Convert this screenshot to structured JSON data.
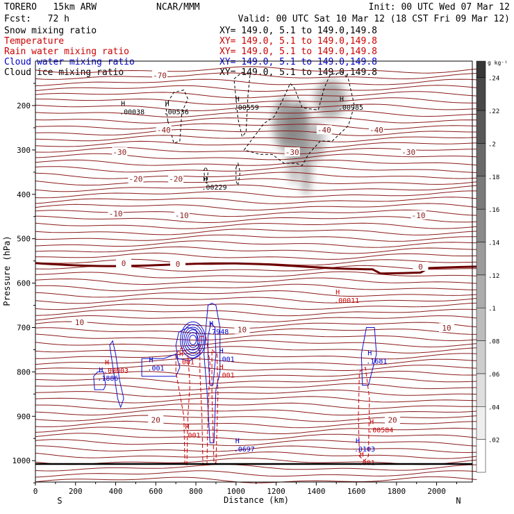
{
  "chart_data": {
    "type": "contour",
    "header": {
      "model": "TORERO   15km ARW",
      "center": "NCAR/MMM",
      "init": "Init: 00 UTC Wed 07 Mar 12",
      "fcst": "Fcst:   72 h",
      "valid": "Valid: 00 UTC Sat 10 Mar 12 (18 CST Fri 09 Mar 12)"
    },
    "fields": [
      {
        "name": "Snow mixing ratio",
        "color": "#000000",
        "xy": "XY= 149.0,   5.1 to 149.0,149.8"
      },
      {
        "name": "Temperature",
        "color": "#cc0000",
        "xy": "XY= 149.0,   5.1 to 149.0,149.8"
      },
      {
        "name": "Rain water mixing ratio",
        "color": "#cc0000",
        "xy": "XY= 149.0,   5.1 to 149.0,149.8"
      },
      {
        "name": "Cloud water mixing ratio",
        "color": "#0000cc",
        "xy": "XY= 149.0,   5.1 to 149.0,149.8"
      },
      {
        "name": "Cloud ice mixing ratio",
        "color": "#000000",
        "xy": "XY= 149.0,   5.1 to 149.0,149.8"
      }
    ],
    "xlabel": "Distance (km)",
    "ylabel": "Pressure (hPa)",
    "xlim": [
      0,
      2200
    ],
    "ylim": [
      1050,
      100
    ],
    "x_ticks": [
      0,
      200,
      400,
      600,
      800,
      1000,
      1200,
      1400,
      1600,
      1800,
      2000
    ],
    "y_ticks": [
      200,
      300,
      400,
      500,
      600,
      700,
      800,
      900,
      1000
    ],
    "x_tick_labels": [
      "0",
      "200",
      "400",
      "600",
      "800",
      "1000",
      "1200",
      "1400",
      "1600",
      "1800",
      "2000"
    ],
    "y_tick_labels": [
      "200",
      "300",
      "400",
      "500",
      "600",
      "700",
      "800",
      "900",
      "1000"
    ],
    "end_labels": {
      "left": "S",
      "right": "N"
    },
    "colorbar": {
      "units": "g kg⁻¹",
      "levels": [
        0.02,
        0.04,
        0.06,
        0.08,
        0.1,
        0.12,
        0.14,
        0.16,
        0.18,
        0.2,
        0.22,
        0.24
      ],
      "labels": [
        ".02",
        ".04",
        ".06",
        ".08",
        ".1",
        ".12",
        ".14",
        ".16",
        ".18",
        ".2",
        ".22",
        ".24"
      ]
    },
    "temperature_contours": {
      "interval_c": 2,
      "emphasized_c": 0,
      "labeled": [
        {
          "value": -70,
          "label": "-70",
          "x": 620,
          "p": 132
        },
        {
          "value": -40,
          "label": "-40",
          "x": 640,
          "p": 255
        },
        {
          "value": -40,
          "label": "-40",
          "x": 1440,
          "p": 255
        },
        {
          "value": -40,
          "label": "-40",
          "x": 1700,
          "p": 255
        },
        {
          "value": -30,
          "label": "-30",
          "x": 420,
          "p": 305
        },
        {
          "value": -30,
          "label": "-30",
          "x": 1280,
          "p": 305
        },
        {
          "value": -30,
          "label": "-30",
          "x": 1860,
          "p": 305
        },
        {
          "value": -20,
          "label": "-20",
          "x": 500,
          "p": 365
        },
        {
          "value": -20,
          "label": "-20",
          "x": 700,
          "p": 365
        },
        {
          "value": -10,
          "label": "-10",
          "x": 400,
          "p": 443
        },
        {
          "value": -10,
          "label": "-10",
          "x": 730,
          "p": 447
        },
        {
          "value": -10,
          "label": "-10",
          "x": 1910,
          "p": 447
        },
        {
          "value": 0,
          "label": "0",
          "x": 440,
          "p": 555
        },
        {
          "value": 0,
          "label": "0",
          "x": 710,
          "p": 557
        },
        {
          "value": 0,
          "label": "0",
          "x": 1920,
          "p": 563
        },
        {
          "value": 10,
          "label": "10",
          "x": 220,
          "p": 688
        },
        {
          "value": 10,
          "label": "10",
          "x": 1030,
          "p": 705
        },
        {
          "value": 10,
          "label": "10",
          "x": 2050,
          "p": 701
        },
        {
          "value": 20,
          "label": "20",
          "x": 600,
          "p": 908
        },
        {
          "value": 20,
          "label": "20",
          "x": 1780,
          "p": 908
        }
      ]
    },
    "maxima_labels": [
      {
        "field": "ice",
        "value": ".00038",
        "x": 440,
        "p": 215
      },
      {
        "field": "ice",
        "value": ".00536",
        "x": 660,
        "p": 215
      },
      {
        "field": "ice",
        "value": ".00559",
        "x": 1010,
        "p": 205
      },
      {
        "field": "ice",
        "value": ".00985",
        "x": 1530,
        "p": 205
      },
      {
        "field": "snow",
        "value": ".00229",
        "x": 850,
        "p": 385
      },
      {
        "field": "rain",
        "value": ".00011",
        "x": 1510,
        "p": 640
      },
      {
        "field": "cloud",
        "value": ".7948",
        "x": 880,
        "p": 710
      },
      {
        "field": "cloud",
        "value": ".001",
        "x": 580,
        "p": 792
      },
      {
        "field": "cloud",
        "value": ".001",
        "x": 930,
        "p": 772
      },
      {
        "field": "rain",
        "value": ".001",
        "x": 730,
        "p": 778
      },
      {
        "field": "rain",
        "value": ".001",
        "x": 930,
        "p": 808
      },
      {
        "field": "rain",
        "value": ".00003",
        "x": 360,
        "p": 798
      },
      {
        "field": "cloud",
        "value": ".1886",
        "x": 330,
        "p": 815
      },
      {
        "field": "cloud",
        "value": ".1681",
        "x": 1670,
        "p": 777
      },
      {
        "field": "rain",
        "value": ".001",
        "x": 760,
        "p": 943
      },
      {
        "field": "rain",
        "value": ".00584",
        "x": 1680,
        "p": 932
      },
      {
        "field": "cloud",
        "value": ".0697",
        "x": 1010,
        "p": 975
      },
      {
        "field": "cloud",
        "value": ".0103",
        "x": 1610,
        "p": 975
      },
      {
        "field": "rain",
        "value": ".001",
        "x": 1630,
        "p": 1005
      }
    ]
  }
}
